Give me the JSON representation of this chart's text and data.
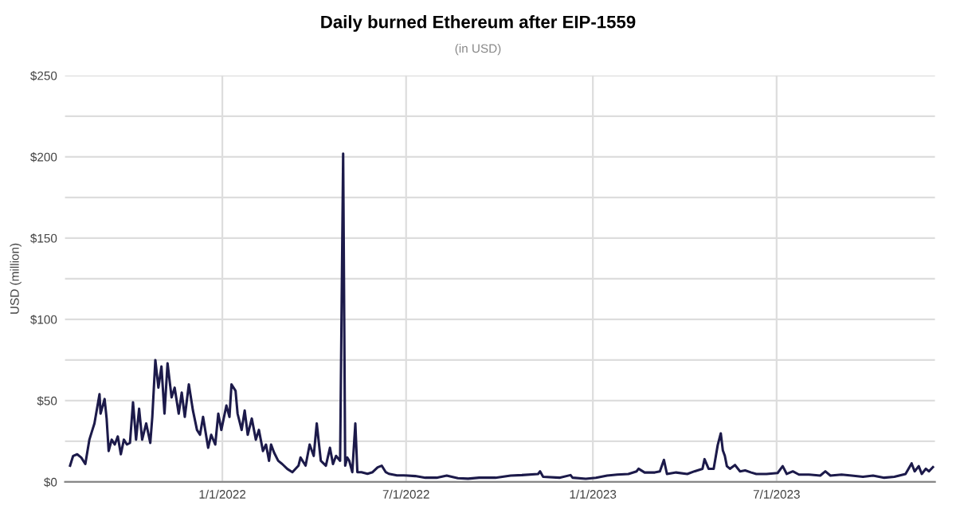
{
  "chart_data": {
    "type": "line",
    "title": "Daily burned Ethereum after EIP-1559",
    "subtitle": "(in USD)",
    "ylabel": "USD (million)",
    "x": [
      "2021-08-04",
      "2021-08-07",
      "2021-08-11",
      "2021-08-15",
      "2021-08-19",
      "2021-08-23",
      "2021-08-26",
      "2021-08-28",
      "2021-09-02",
      "2021-09-03",
      "2021-09-07",
      "2021-09-09",
      "2021-09-11",
      "2021-09-14",
      "2021-09-17",
      "2021-09-20",
      "2021-09-23",
      "2021-09-26",
      "2021-09-29",
      "2021-10-02",
      "2021-10-05",
      "2021-10-08",
      "2021-10-11",
      "2021-10-14",
      "2021-10-18",
      "2021-10-22",
      "2021-10-24",
      "2021-10-27",
      "2021-10-30",
      "2021-11-02",
      "2021-11-05",
      "2021-11-08",
      "2021-11-12",
      "2021-11-15",
      "2021-11-19",
      "2021-11-22",
      "2021-11-25",
      "2021-11-29",
      "2021-12-03",
      "2021-12-07",
      "2021-12-10",
      "2021-12-13",
      "2021-12-18",
      "2021-12-21",
      "2021-12-25",
      "2021-12-28",
      "2021-12-31",
      "2022-01-05",
      "2022-01-08",
      "2022-01-10",
      "2022-01-14",
      "2022-01-16",
      "2022-01-20",
      "2022-01-23",
      "2022-01-26",
      "2022-01-30",
      "2022-02-03",
      "2022-02-06",
      "2022-02-10",
      "2022-02-13",
      "2022-02-16",
      "2022-02-18",
      "2022-02-21",
      "2022-02-25",
      "2022-03-01",
      "2022-03-06",
      "2022-03-11",
      "2022-03-17",
      "2022-03-19",
      "2022-03-24",
      "2022-03-28",
      "2022-04-01",
      "2022-04-04",
      "2022-04-08",
      "2022-04-13",
      "2022-04-17",
      "2022-04-20",
      "2022-04-23",
      "2022-04-27",
      "2022-04-30",
      "2022-05-02",
      "2022-05-04",
      "2022-05-06",
      "2022-05-09",
      "2022-05-12",
      "2022-05-14",
      "2022-05-18",
      "2022-05-24",
      "2022-05-29",
      "2022-06-03",
      "2022-06-07",
      "2022-06-11",
      "2022-06-14",
      "2022-06-22",
      "2022-06-29",
      "2022-07-10",
      "2022-07-20",
      "2022-07-31",
      "2022-08-10",
      "2022-08-21",
      "2022-08-31",
      "2022-09-11",
      "2022-09-27",
      "2022-10-12",
      "2022-10-23",
      "2022-11-08",
      "2022-11-10",
      "2022-11-13",
      "2022-11-29",
      "2022-12-10",
      "2022-12-12",
      "2022-12-25",
      "2023-01-04",
      "2023-01-15",
      "2023-01-25",
      "2023-02-05",
      "2023-02-13",
      "2023-02-15",
      "2023-02-21",
      "2023-03-03",
      "2023-03-08",
      "2023-03-12",
      "2023-03-15",
      "2023-03-24",
      "2023-04-04",
      "2023-04-11",
      "2023-04-19",
      "2023-04-21",
      "2023-04-25",
      "2023-04-30",
      "2023-05-04",
      "2023-05-07",
      "2023-05-09",
      "2023-05-11",
      "2023-05-13",
      "2023-05-16",
      "2023-05-21",
      "2023-05-26",
      "2023-05-31",
      "2023-06-06",
      "2023-06-11",
      "2023-06-21",
      "2023-07-02",
      "2023-07-07",
      "2023-07-11",
      "2023-07-17",
      "2023-07-23",
      "2023-08-02",
      "2023-08-13",
      "2023-08-18",
      "2023-08-23",
      "2023-09-03",
      "2023-09-13",
      "2023-09-24",
      "2023-10-04",
      "2023-10-15",
      "2023-10-25",
      "2023-11-05",
      "2023-11-11",
      "2023-11-14",
      "2023-11-18",
      "2023-11-21",
      "2023-11-25",
      "2023-11-28",
      "2023-12-02"
    ],
    "series": [
      {
        "color": "#1c1a4a",
        "values": [
          10,
          16,
          17,
          15,
          11,
          26,
          32,
          36,
          54,
          42,
          51,
          39,
          19,
          26,
          23,
          28,
          17,
          26,
          23,
          24,
          49,
          26,
          45,
          26,
          36,
          24,
          40,
          75,
          58,
          71,
          42,
          73,
          52,
          58,
          42,
          55,
          40,
          60,
          44,
          32,
          29,
          40,
          21,
          29,
          23,
          42,
          32,
          47,
          40,
          60,
          56,
          42,
          32,
          44,
          29,
          39,
          26,
          32,
          19,
          23,
          13,
          23,
          18,
          13,
          11,
          8,
          6,
          10,
          15,
          10,
          23,
          16,
          36,
          13,
          10,
          21,
          11,
          16,
          13,
          202,
          10,
          15,
          13,
          6,
          36,
          6,
          6,
          5,
          6,
          9,
          10,
          6,
          5,
          4,
          4,
          3.6,
          2.6,
          2.6,
          3.9,
          2.3,
          2,
          2.6,
          2.6,
          3.9,
          4.2,
          4.9,
          6.5,
          3.2,
          2.6,
          4.2,
          2.6,
          1.9,
          2.6,
          3.9,
          4.5,
          4.9,
          6.5,
          8.1,
          5.8,
          5.8,
          6.5,
          13.6,
          4.9,
          5.8,
          4.9,
          6.5,
          8.1,
          14,
          8.1,
          8.1,
          22.7,
          29.9,
          19.5,
          16,
          9.7,
          8.1,
          10.4,
          6.5,
          7.1,
          5.8,
          4.9,
          4.9,
          5.5,
          9.7,
          4.9,
          6.5,
          4.5,
          4.5,
          3.9,
          6.5,
          3.9,
          4.5,
          3.9,
          3.2,
          3.9,
          2.6,
          3.2,
          4.9,
          11.4,
          6.5,
          9.7,
          4.9,
          8.1,
          6.5,
          9.1
        ]
      }
    ],
    "xlim": [
      "2021-07-30",
      "2023-12-04"
    ],
    "xticks": [
      {
        "value": "2022-01-01",
        "label": "1/1/2022"
      },
      {
        "value": "2022-07-01",
        "label": "7/1/2022"
      },
      {
        "value": "2023-01-01",
        "label": "1/1/2023"
      },
      {
        "value": "2023-07-01",
        "label": "7/1/2023"
      }
    ],
    "ylim": [
      0,
      250
    ],
    "yticks": [
      {
        "value": 0,
        "label": "$0"
      },
      {
        "value": 25,
        "label": null
      },
      {
        "value": 50,
        "label": "$50"
      },
      {
        "value": 75,
        "label": null
      },
      {
        "value": 100,
        "label": "$100"
      },
      {
        "value": 125,
        "label": null
      },
      {
        "value": 150,
        "label": "$150"
      },
      {
        "value": 175,
        "label": null
      },
      {
        "value": 200,
        "label": "$200"
      },
      {
        "value": 225,
        "label": null
      },
      {
        "value": 250,
        "label": "$250"
      }
    ],
    "grid": true,
    "marker": "none",
    "line_style": "solid"
  }
}
